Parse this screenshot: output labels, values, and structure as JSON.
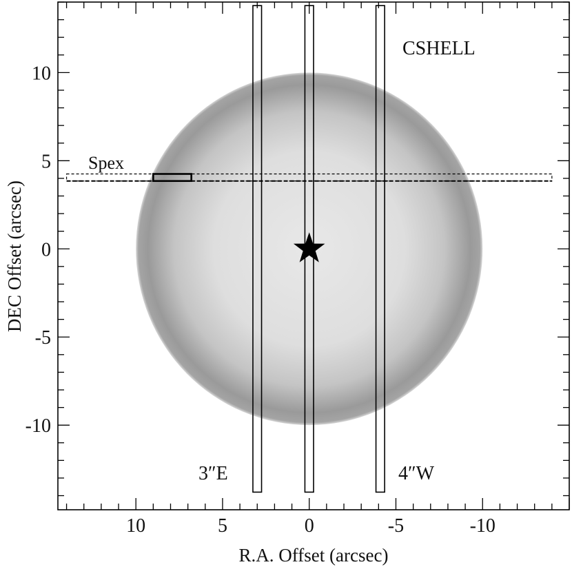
{
  "chart_data": {
    "type": "scatter",
    "title": "",
    "xlabel": "R.A. Offset (arcsec)",
    "ylabel": "DEC Offset (arcsec)",
    "xlim": [
      14.5,
      -15
    ],
    "ylim": [
      -14.8,
      14.0
    ],
    "x_inverted": true,
    "x_ticks": [
      10,
      5,
      0,
      -5,
      -10
    ],
    "y_ticks": [
      10,
      5,
      0,
      -5,
      -10
    ],
    "x_tick_labels": [
      "10",
      "5",
      "0",
      "-5",
      "-10"
    ],
    "y_tick_labels": [
      "10",
      "5",
      "0",
      "-5",
      "-10"
    ],
    "grid": false,
    "nebula": {
      "center": [
        0,
        0
      ],
      "radius": 10,
      "shading": "limb-brightened grey disk"
    },
    "star": {
      "x": 0,
      "y": 0,
      "marker": "filled-star"
    },
    "cshell_slits": [
      {
        "label": "3″E",
        "x_center": 3,
        "width": 0.5,
        "y_range": [
          -13.8,
          13.8
        ]
      },
      {
        "label": "",
        "x_center": 0,
        "width": 0.5,
        "y_range": [
          -13.8,
          13.8
        ]
      },
      {
        "label": "4″W",
        "x_center": -4.1,
        "width": 0.5,
        "y_range": [
          -13.8,
          13.8
        ]
      }
    ],
    "spex_slit": {
      "label": "Spex",
      "x_range": [
        14,
        -14
      ],
      "y_range": [
        3.85,
        4.25
      ],
      "style": "dashed"
    },
    "spex_aperture": {
      "x_range": [
        9,
        6.8
      ],
      "y_range": [
        3.85,
        4.25
      ]
    },
    "annotations": [
      "CSHELL",
      "Spex",
      "3″E",
      "4″W"
    ]
  }
}
